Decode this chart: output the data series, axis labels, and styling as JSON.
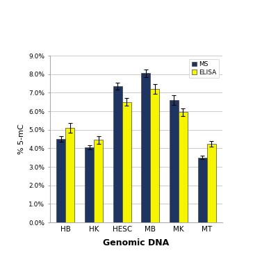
{
  "categories": [
    "HB",
    "HK",
    "HESC",
    "MB",
    "MK",
    "MT"
  ],
  "ms_values": [
    4.5,
    4.05,
    7.35,
    8.05,
    6.6,
    3.5
  ],
  "elisa_values": [
    5.1,
    4.45,
    6.5,
    7.2,
    5.95,
    4.25
  ],
  "ms_errors": [
    0.15,
    0.1,
    0.2,
    0.2,
    0.25,
    0.1
  ],
  "elisa_errors": [
    0.25,
    0.2,
    0.2,
    0.25,
    0.2,
    0.15
  ],
  "ms_color": "#1e3461",
  "elisa_color": "#f5f500",
  "ylabel": "% 5-mC",
  "xlabel": "Genomic DNA",
  "ylim": [
    0,
    9.0
  ],
  "yticks": [
    0.0,
    1.0,
    2.0,
    3.0,
    4.0,
    5.0,
    6.0,
    7.0,
    8.0,
    9.0
  ],
  "ytick_labels": [
    "0.0%",
    "1.0%",
    "2.0%",
    "3.0%",
    "4.0%",
    "5.0%",
    "6.0%",
    "7.0%",
    "8.0%",
    "9.0%"
  ],
  "legend_ms": "MS",
  "legend_elisa": "ELISA",
  "bar_width": 0.32,
  "background_color": "#ffffff",
  "grid_color": "#cccccc",
  "edge_color": "#444444"
}
